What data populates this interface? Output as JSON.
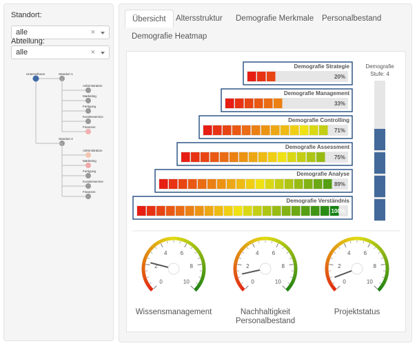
{
  "filters": {
    "standort_label": "Standort:",
    "standort_value": "alle",
    "abteilung_label": "Abteilung:",
    "abteilung_value": "alle",
    "clear_symbol": "×"
  },
  "tree": {
    "root": "Unternehmen",
    "sites": [
      {
        "name": "Standort 1",
        "departments": [
          "Administration",
          "Marketing",
          "Fertigung",
          "Kundenservice",
          "Finanzen"
        ]
      },
      {
        "name": "Standort 2",
        "departments": [
          "Administration",
          "Marketing",
          "Fertigung",
          "Kundenservice",
          "Finanzen"
        ]
      }
    ]
  },
  "tabs": [
    "Übersicht",
    "Altersstruktur",
    "Demografie Merkmale",
    "Personalbestand",
    "Demografie Heatmap"
  ],
  "active_tab": 0,
  "pyramid": [
    {
      "label": "Demografie Strategie",
      "percent": "20%",
      "filled": 3
    },
    {
      "label": "Demografie Management",
      "percent": "33%",
      "filled": 6
    },
    {
      "label": "Demografie Controlling",
      "percent": "71%",
      "filled": 13
    },
    {
      "label": "Demografie Assessment",
      "percent": "75%",
      "filled": 15
    },
    {
      "label": "Demografie Analyse",
      "percent": "89%",
      "filled": 18
    },
    {
      "label": "Demografie Verständnis",
      "percent": "100%",
      "filled": 21
    }
  ],
  "level": {
    "title": "Demografie",
    "subtitle": "Stufe: 4",
    "value": 4,
    "max": 6
  },
  "gauges": [
    {
      "label": [
        "Wissensmanagement"
      ],
      "value": 2.2
    },
    {
      "label": [
        "Nachhaltigkeit",
        "Personalbestand"
      ],
      "value": 1.2
    },
    {
      "label": [
        "Projektstatus"
      ],
      "value": 0.9
    }
  ],
  "gauge_ticks": [
    "0",
    "2",
    "4",
    "6",
    "8",
    "10"
  ],
  "colors": {
    "bar_outline": "#2e5585",
    "level_fill": "#43699a",
    "empty_track": "#e6e6e6"
  }
}
